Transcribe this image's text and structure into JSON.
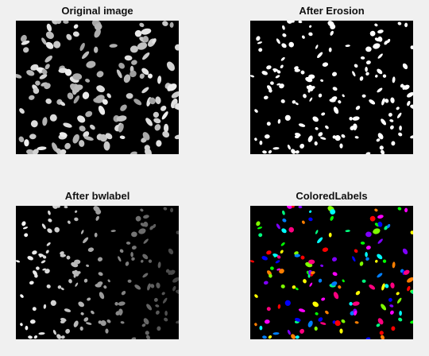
{
  "figure": {
    "panels": [
      {
        "title": "Original image",
        "kind": "grayscale-nuclei"
      },
      {
        "title": "After Erosion",
        "kind": "binary"
      },
      {
        "title": "After bwlabel",
        "kind": "label-gradient"
      },
      {
        "title": "ColoredLabels",
        "kind": "colored-labels"
      }
    ]
  },
  "colors": {
    "figure_background": "#f0f0f0",
    "axes_background": "#000000",
    "label_palette": [
      "#ff0000",
      "#ff7f00",
      "#ffff00",
      "#7fff00",
      "#00ff00",
      "#00ff7f",
      "#00ffff",
      "#007fff",
      "#0000ff",
      "#7f00ff",
      "#ff00ff",
      "#ff007f"
    ]
  }
}
